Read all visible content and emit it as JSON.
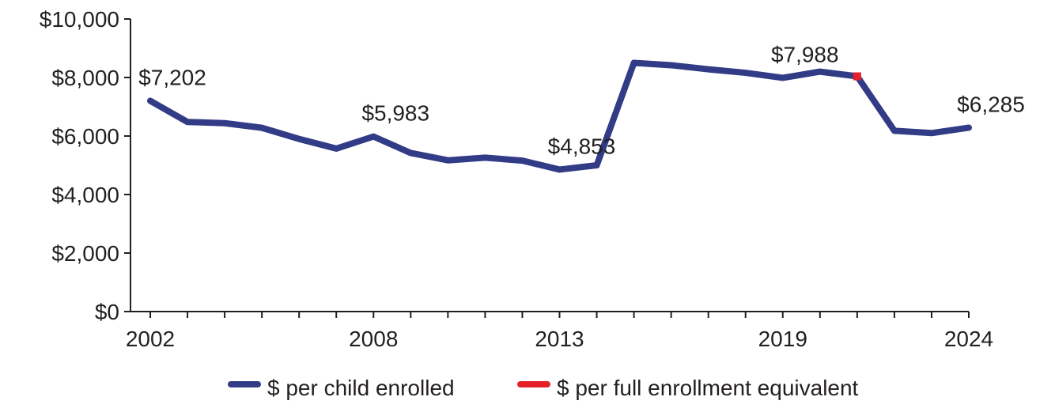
{
  "chart_data": {
    "type": "line",
    "x": [
      2002,
      2003,
      2004,
      2005,
      2006,
      2007,
      2008,
      2009,
      2010,
      2011,
      2012,
      2013,
      2014,
      2015,
      2016,
      2017,
      2018,
      2019,
      2020,
      2021,
      2022,
      2023,
      2024
    ],
    "series": [
      {
        "name": "$ per child enrolled",
        "color": "#323b86",
        "values": [
          7202,
          6480,
          6440,
          6280,
          5900,
          5570,
          5983,
          5420,
          5170,
          5260,
          5160,
          4853,
          5000,
          8500,
          8420,
          8280,
          8160,
          7988,
          8200,
          8040,
          6180,
          6100,
          6285
        ]
      },
      {
        "name": "$ per full enrollment equivalent",
        "color": "#e42129",
        "values": [
          null,
          null,
          null,
          null,
          null,
          null,
          null,
          null,
          null,
          null,
          null,
          null,
          null,
          null,
          null,
          null,
          null,
          null,
          null,
          8040,
          null,
          null,
          null
        ]
      }
    ],
    "ylim": [
      0,
      10000
    ],
    "yticks": [
      "$0",
      "$2,000",
      "$4,000",
      "$6,000",
      "$8,000",
      "$10,000"
    ],
    "yticks_values": [
      0,
      2000,
      4000,
      6000,
      8000,
      10000
    ],
    "xtick_labels": [
      "2002",
      "2008",
      "2013",
      "2019",
      "2024"
    ],
    "xtick_label_values": [
      2002,
      2008,
      2013,
      2019,
      2024
    ],
    "annotations": [
      {
        "x": 2002,
        "text": "$7,202"
      },
      {
        "x": 2008,
        "text": "$5,983"
      },
      {
        "x": 2013,
        "text": "$4,853"
      },
      {
        "x": 2019,
        "text": "$7,988"
      },
      {
        "x": 2024,
        "text": "$6,285"
      }
    ],
    "legend": {
      "placement": "bottom-center",
      "items": [
        "$ per child enrolled",
        "$ per full enrollment equivalent"
      ]
    },
    "grid": false
  }
}
